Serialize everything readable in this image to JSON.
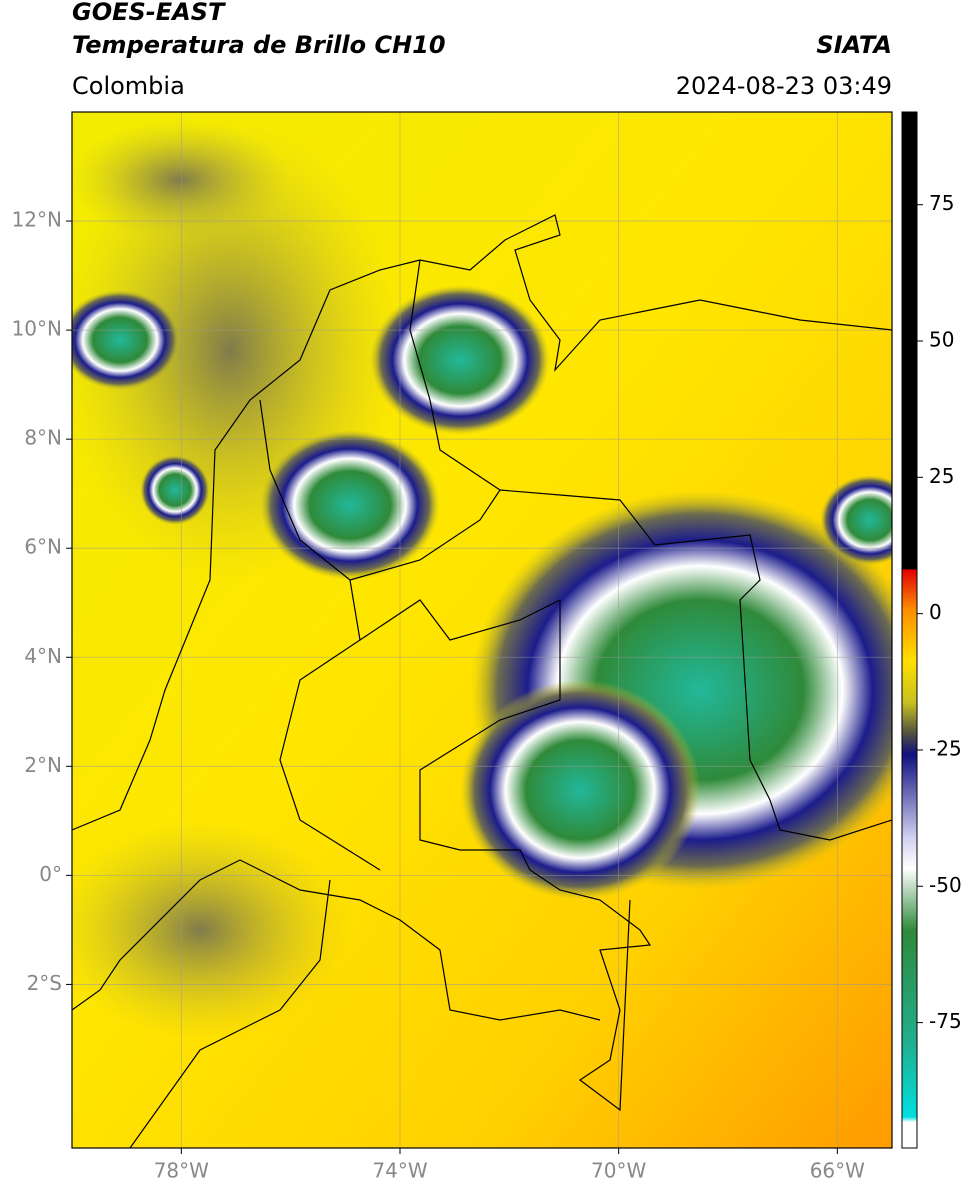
{
  "header": {
    "title": "GOES-EAST",
    "subtitle": "Temperatura de Brillo CH10",
    "source": "SIATA",
    "region": "Colombia",
    "timestamp": "2024-08-23 03:49"
  },
  "chart_data": {
    "type": "map",
    "xlim": [
      -80,
      -65
    ],
    "xticks": [
      {
        "value": -78,
        "label": "78°W"
      },
      {
        "value": -74,
        "label": "74°W"
      },
      {
        "value": -70,
        "label": "70°W"
      },
      {
        "value": -66,
        "label": "66°W"
      }
    ],
    "ylim": [
      -5,
      14
    ],
    "yticks": [
      {
        "value": 12,
        "label": "12°N"
      },
      {
        "value": 10,
        "label": "10°N"
      },
      {
        "value": 8,
        "label": "8°N"
      },
      {
        "value": 6,
        "label": "6°N"
      },
      {
        "value": 4,
        "label": "4°N"
      },
      {
        "value": 2,
        "label": "2°N"
      },
      {
        "value": 0,
        "label": "0°"
      },
      {
        "value": -2,
        "label": "2°S"
      }
    ],
    "grid": true,
    "colorbar": {
      "lim": [
        -98,
        92
      ],
      "ticks": [
        75,
        50,
        25,
        0,
        -25,
        -50,
        -75
      ]
    }
  }
}
